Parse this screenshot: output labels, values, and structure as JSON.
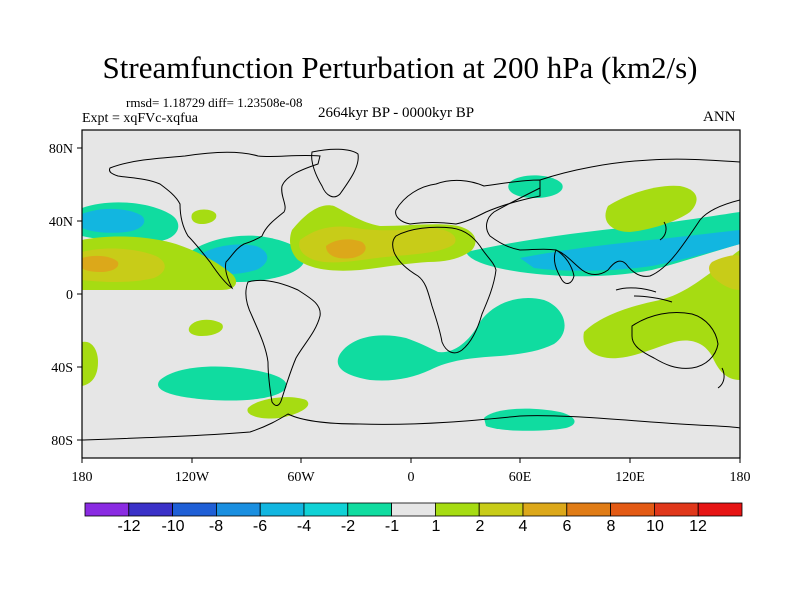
{
  "title": "Streamfunction Perturbation at 200 hPa (km2/s)",
  "stats": "rmsd= 1.18729 diff= 1.23508e-08",
  "experiment": "Expt = xqFVc-xqfua",
  "period": "2664kyr BP - 0000kyr BP",
  "season": "ANN",
  "lon_ticks": [
    "180",
    "120W",
    "60W",
    "0",
    "60E",
    "120E",
    "180"
  ],
  "lat_ticks": [
    "80N",
    "40N",
    "0",
    "40S",
    "80S"
  ],
  "colorbar": {
    "labels": [
      "-12",
      "-10",
      "-8",
      "-6",
      "-4",
      "-2",
      "-1",
      "1",
      "2",
      "4",
      "6",
      "8",
      "10",
      "12"
    ],
    "colors": [
      "#8a2be2",
      "#3b31c8",
      "#1f5fd6",
      "#1a8fe0",
      "#12b6e0",
      "#10d2d6",
      "#10dca0",
      "#e6e6e6",
      "#a6dc12",
      "#c8cc18",
      "#dca81a",
      "#e07c16",
      "#e35a14",
      "#e0371a",
      "#e61414"
    ]
  },
  "colors": {
    "neutral": "#e6e6e6",
    "pos1": "#a6dc12",
    "pos2": "#c8cc18",
    "pos3": "#dca81a",
    "neg1": "#10dca0",
    "neg2": "#12b6e0"
  }
}
